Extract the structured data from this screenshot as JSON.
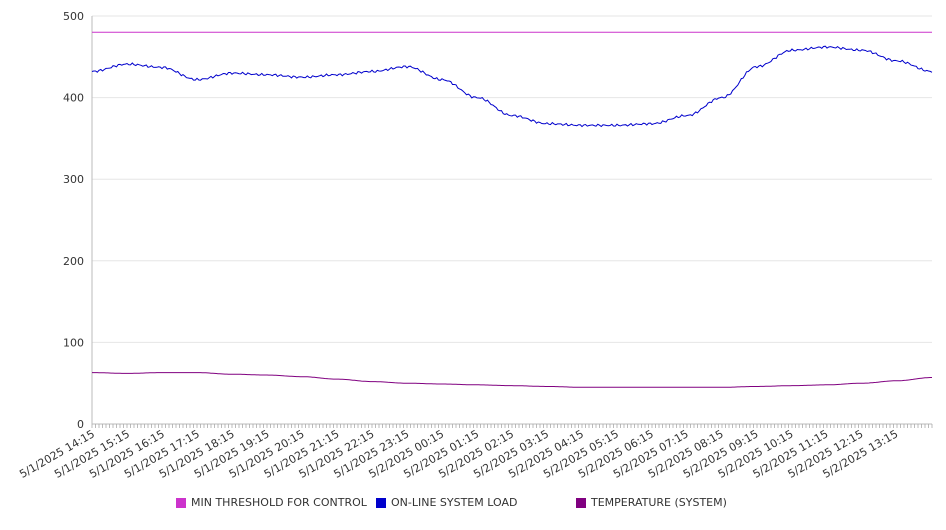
{
  "chart_data": {
    "type": "line",
    "title": "",
    "xlabel": "",
    "ylabel": "",
    "ylim": [
      0,
      500
    ],
    "y_ticks": [
      0,
      100,
      200,
      300,
      400,
      500
    ],
    "x_tick_labels": [
      "5/1/2025 14:15",
      "5/1/2025 15:15",
      "5/1/2025 16:15",
      "5/1/2025 17:15",
      "5/1/2025 18:15",
      "5/1/2025 19:15",
      "5/1/2025 20:15",
      "5/1/2025 21:15",
      "5/1/2025 22:15",
      "5/1/2025 23:15",
      "5/2/2025 00:15",
      "5/2/2025 01:15",
      "5/2/2025 02:15",
      "5/2/2025 03:15",
      "5/2/2025 04:15",
      "5/2/2025 05:15",
      "5/2/2025 06:15",
      "5/2/2025 07:15",
      "5/2/2025 08:15",
      "5/2/2025 09:15",
      "5/2/2025 10:15",
      "5/2/2025 11:15",
      "5/2/2025 12:15",
      "5/2/2025 13:15"
    ],
    "grid": true,
    "legend_position": "bottom",
    "series": [
      {
        "name": "MIN THRESHOLD FOR CONTROL",
        "color": "#cc33cc",
        "values": [
          480,
          480,
          480,
          480,
          480,
          480,
          480,
          480,
          480,
          480,
          480,
          480,
          480,
          480,
          480,
          480,
          480,
          480,
          480,
          480,
          480,
          480,
          480,
          480,
          480
        ]
      },
      {
        "name": "ON-LINE SYSTEM LOAD",
        "color": "#0000cc",
        "values": [
          432,
          441,
          437,
          422,
          430,
          428,
          425,
          428,
          432,
          438,
          422,
          400,
          378,
          368,
          366,
          366,
          368,
          378,
          400,
          438,
          458,
          462,
          458,
          445,
          432
        ]
      },
      {
        "name": "TEMPERATURE (SYSTEM)",
        "color": "#800080",
        "values": [
          63,
          62,
          63,
          63,
          61,
          60,
          58,
          55,
          52,
          50,
          49,
          48,
          47,
          46,
          45,
          45,
          45,
          45,
          45,
          46,
          47,
          48,
          50,
          53,
          57
        ]
      }
    ]
  }
}
